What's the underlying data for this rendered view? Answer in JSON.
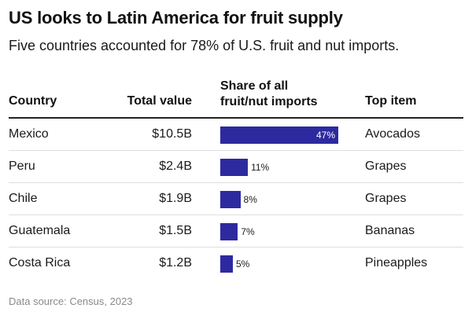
{
  "title": "US looks to Latin America for fruit supply",
  "subtitle": "Five countries accounted for 78% of U.S. fruit and nut imports.",
  "headers": {
    "country": "Country",
    "total_value": "Total value",
    "share_line1": "Share of all",
    "share_line2": "fruit/nut imports",
    "top_item": "Top item"
  },
  "source": "Data source: Census, 2023",
  "colors": {
    "bar": "#2d2a9f"
  },
  "chart_data": {
    "type": "table",
    "title": "US looks to Latin America for fruit supply",
    "subtitle": "Five countries accounted for 78% of U.S. fruit and nut imports.",
    "columns": [
      "Country",
      "Total value",
      "Share of all fruit/nut imports",
      "Top item"
    ],
    "max_share": 47,
    "rows": [
      {
        "country": "Mexico",
        "total_value": "$10.5B",
        "share": 47,
        "share_label": "47%",
        "top_item": "Avocados"
      },
      {
        "country": "Peru",
        "total_value": "$2.4B",
        "share": 11,
        "share_label": "11%",
        "top_item": "Grapes"
      },
      {
        "country": "Chile",
        "total_value": "$1.9B",
        "share": 8,
        "share_label": "8%",
        "top_item": "Grapes"
      },
      {
        "country": "Guatemala",
        "total_value": "$1.5B",
        "share": 7,
        "share_label": "7%",
        "top_item": "Bananas"
      },
      {
        "country": "Costa Rica",
        "total_value": "$1.2B",
        "share": 5,
        "share_label": "5%",
        "top_item": "Pineapples"
      }
    ]
  }
}
